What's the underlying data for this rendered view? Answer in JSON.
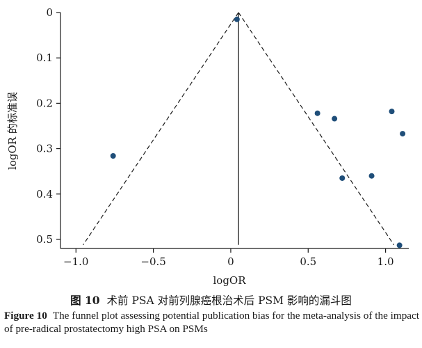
{
  "chart_data": {
    "type": "scatter",
    "subtype": "funnel",
    "xlabel": "logOR",
    "ylabel": "logOR 的标准误",
    "xlim": [
      -1.1,
      1.15
    ],
    "ylim": [
      0,
      0.52
    ],
    "y_inverted": true,
    "x_ticks": [
      -1.0,
      -0.5,
      0,
      0.5,
      1.0
    ],
    "x_tick_labels": [
      "−1.0",
      "−0.5",
      "0",
      "0.5",
      "1.0"
    ],
    "y_ticks": [
      0,
      0.1,
      0.2,
      0.3,
      0.4,
      0.5
    ],
    "y_tick_labels": [
      "0",
      "0.1",
      "0.2",
      "0.3",
      "0.4",
      "0.5"
    ],
    "pooled_estimate": 0.05,
    "funnel_bottom_se": 0.512,
    "funnel_line_style": "dashed",
    "pooled_line_style": "solid",
    "point_color": "#1f4e79",
    "points": [
      {
        "x": 0.04,
        "y": 0.015
      },
      {
        "x": 0.56,
        "y": 0.222
      },
      {
        "x": 0.67,
        "y": 0.234
      },
      {
        "x": 1.04,
        "y": 0.218
      },
      {
        "x": 1.11,
        "y": 0.267
      },
      {
        "x": -0.76,
        "y": 0.316
      },
      {
        "x": 0.72,
        "y": 0.365
      },
      {
        "x": 0.91,
        "y": 0.36
      },
      {
        "x": 1.09,
        "y": 0.513
      }
    ]
  },
  "caption": {
    "cn_label": "图 10",
    "cn_text": "术前 PSA 对前列腺癌根治术后 PSM 影响的漏斗图",
    "en_label": "Figure 10",
    "en_text": "The funnel plot assessing potential publication bias for the meta-analysis of the impact of pre-radical prostatectomy high PSA on PSMs"
  }
}
